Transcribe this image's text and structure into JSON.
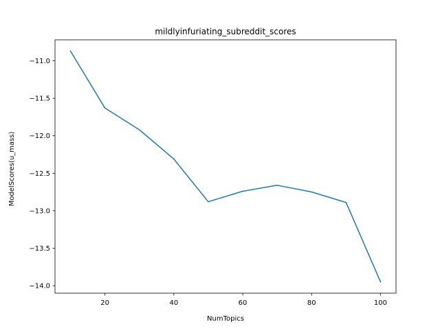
{
  "chart_data": {
    "type": "line",
    "title": "mildlyinfuriating_subreddit_scores",
    "xlabel": "NumTopics",
    "ylabel": "ModelScores(u_mass)",
    "x": [
      10,
      20,
      30,
      40,
      50,
      60,
      70,
      80,
      90,
      100
    ],
    "series": [
      {
        "values": [
          -10.87,
          -11.63,
          -11.92,
          -12.31,
          -12.88,
          -12.74,
          -12.66,
          -12.75,
          -12.89,
          -13.95
        ],
        "color": "#1f77b4"
      }
    ],
    "xlim": [
      5.5,
      104.5
    ],
    "ylim": [
      -14.1,
      -10.72
    ],
    "xticks": [
      20,
      40,
      60,
      80,
      100
    ],
    "xtick_labels": [
      "20",
      "40",
      "60",
      "80",
      "100"
    ],
    "yticks": [
      -11.0,
      -11.5,
      -12.0,
      -12.5,
      -13.0,
      -13.5,
      -14.0
    ],
    "ytick_labels": [
      "−11.0",
      "−11.5",
      "−12.0",
      "−12.5",
      "−13.0",
      "−13.5",
      "−14.0"
    ],
    "grid": false,
    "legend": "none"
  }
}
